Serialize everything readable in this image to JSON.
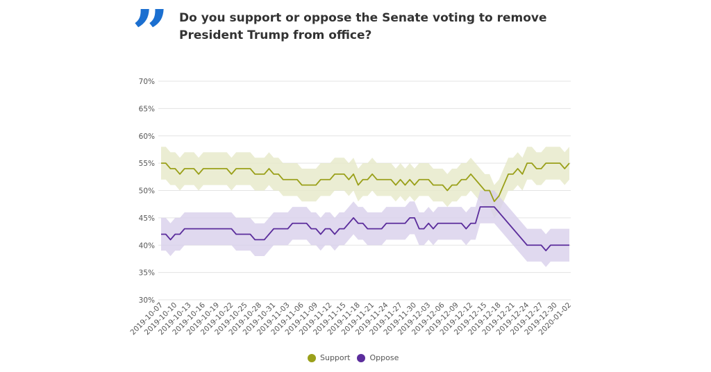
{
  "header": {
    "quote_icon": "quote-icon",
    "title": "Do you support or oppose the Senate voting to remove President Trump from office?"
  },
  "chart_data": {
    "type": "line",
    "title": "Do you support or oppose the Senate voting to remove President Trump from office?",
    "xlabel": "",
    "ylabel": "",
    "start_date": "2019-10-07",
    "x_tick_labels": [
      "2019-10-07",
      "2019-10-10",
      "2019-10-13",
      "2019-10-16",
      "2019-10-19",
      "2019-10-22",
      "2019-10-25",
      "2019-10-28",
      "2019-10-31",
      "2019-11-03",
      "2019-11-06",
      "2019-11-09",
      "2019-11-12",
      "2019-11-15",
      "2019-11-18",
      "2019-11-21",
      "2019-11-24",
      "2019-11-27",
      "2019-11-30",
      "2019-12-03",
      "2019-12-06",
      "2019-12-09",
      "2019-12-12",
      "2019-12-15",
      "2019-12-18",
      "2019-12-21",
      "2019-12-24",
      "2019-12-27",
      "2019-12-30",
      "2020-01-02"
    ],
    "y_tick_labels": [
      "70%",
      "65%",
      "60%",
      "55%",
      "50%",
      "45%",
      "40%",
      "35%",
      "30%"
    ],
    "ylim": [
      30,
      70
    ],
    "grid": true,
    "legend_position": "bottom",
    "uncertainty_band": 3,
    "series": [
      {
        "name": "Support",
        "color": "#9aa01a",
        "band_color": "#e6e9c8",
        "values": [
          55,
          55,
          54,
          54,
          53,
          54,
          54,
          54,
          53,
          54,
          54,
          54,
          54,
          54,
          54,
          53,
          54,
          54,
          54,
          54,
          53,
          53,
          53,
          54,
          53,
          53,
          52,
          52,
          52,
          52,
          51,
          51,
          51,
          51,
          52,
          52,
          52,
          53,
          53,
          53,
          52,
          53,
          51,
          52,
          52,
          53,
          52,
          52,
          52,
          52,
          51,
          52,
          51,
          52,
          51,
          52,
          52,
          52,
          51,
          51,
          51,
          50,
          51,
          51,
          52,
          52,
          53,
          52,
          51,
          50,
          50,
          48,
          49,
          51,
          53,
          53,
          54,
          53,
          55,
          55,
          54,
          54,
          55,
          55,
          55,
          55,
          54,
          55
        ]
      },
      {
        "name": "Oppose",
        "color": "#5b2d9c",
        "band_color": "#d8cfeb",
        "values": [
          42,
          42,
          41,
          42,
          42,
          43,
          43,
          43,
          43,
          43,
          43,
          43,
          43,
          43,
          43,
          43,
          42,
          42,
          42,
          42,
          41,
          41,
          41,
          42,
          43,
          43,
          43,
          43,
          44,
          44,
          44,
          44,
          43,
          43,
          42,
          43,
          43,
          42,
          43,
          43,
          44,
          45,
          44,
          44,
          43,
          43,
          43,
          43,
          44,
          44,
          44,
          44,
          44,
          45,
          45,
          43,
          43,
          44,
          43,
          44,
          44,
          44,
          44,
          44,
          44,
          43,
          44,
          44,
          47,
          47,
          47,
          47,
          46,
          45,
          44,
          43,
          42,
          41,
          40,
          40,
          40,
          40,
          39,
          40,
          40,
          40,
          40,
          40
        ]
      }
    ]
  }
}
